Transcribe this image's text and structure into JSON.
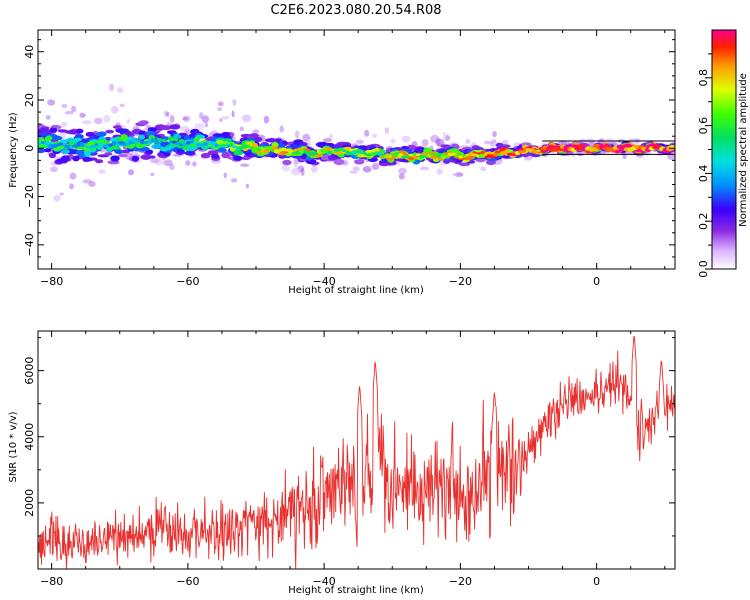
{
  "title": "C2E6.2023.080.20.54.R08",
  "chart_data": [
    {
      "type": "heatmap",
      "xlabel": "Height of straight line (km)",
      "ylabel": "Frequency (Hz)",
      "xlim": [
        -82,
        11.5
      ],
      "ylim": [
        -50,
        49
      ],
      "xticks": [
        -80,
        -60,
        -40,
        -20,
        0
      ],
      "yticks": [
        -40,
        -20,
        0,
        20,
        40
      ],
      "colorbar": {
        "label": "Normalized spectral amplitude",
        "ticks": [
          0.0,
          0.2,
          0.4,
          0.6,
          0.8
        ],
        "range": [
          0,
          1
        ]
      },
      "ridge": {
        "x": [
          -82,
          -78,
          -74,
          -70,
          -66,
          -62,
          -58,
          -54,
          -50,
          -46,
          -42,
          -38,
          -34,
          -30,
          -26,
          -22,
          -18,
          -14,
          -10,
          -6,
          -2,
          2,
          6,
          11.5
        ],
        "freq_center_hz": [
          2,
          1,
          1,
          2,
          3,
          2,
          2,
          1,
          0,
          -1,
          -2,
          -1,
          -2,
          -3,
          -3,
          -3,
          -3,
          -2,
          -1,
          0,
          0,
          0,
          0,
          0
        ],
        "band_halfwidth_hz": [
          8,
          8,
          8,
          9,
          8,
          7,
          6,
          6,
          5,
          5,
          4,
          4,
          4,
          4,
          4,
          4,
          3,
          3,
          2,
          1.5,
          1.5,
          1.5,
          1.5,
          1.5
        ],
        "peak_amplitude": [
          0.45,
          0.4,
          0.45,
          0.4,
          0.4,
          0.35,
          0.45,
          0.5,
          0.7,
          0.75,
          0.7,
          0.65,
          0.6,
          0.7,
          0.75,
          0.7,
          0.8,
          0.85,
          0.9,
          0.95,
          1.0,
          1.0,
          1.0,
          1.0
        ]
      }
    },
    {
      "type": "line",
      "xlabel": "Height of straight line (km)",
      "ylabel": "SNR (10 * v/v)",
      "xlim": [
        -82,
        11.5
      ],
      "ylim": [
        0,
        7200
      ],
      "xticks": [
        -80,
        -60,
        -40,
        -20,
        0
      ],
      "yticks": [
        2000,
        4000,
        6000
      ],
      "color": "#e8302e",
      "x": [
        -82,
        -80,
        -78,
        -76,
        -74,
        -72,
        -70,
        -68,
        -66,
        -64,
        -62,
        -60,
        -58,
        -56,
        -54,
        -52,
        -50,
        -48,
        -46,
        -44,
        -42,
        -40,
        -38,
        -36,
        -34,
        -32,
        -30,
        -28,
        -26,
        -24,
        -22,
        -20,
        -18,
        -16,
        -14,
        -12,
        -10,
        -8,
        -6,
        -4,
        -2,
        0,
        2,
        4,
        6,
        8,
        10,
        11.5
      ],
      "y": [
        600,
        1000,
        700,
        800,
        800,
        900,
        1000,
        900,
        1100,
        1200,
        1100,
        1000,
        1200,
        1100,
        1200,
        1300,
        1300,
        1500,
        1700,
        1800,
        2000,
        2200,
        2400,
        2600,
        3000,
        3300,
        2800,
        2600,
        2300,
        2700,
        2800,
        2500,
        2400,
        3000,
        2900,
        2600,
        3600,
        4200,
        4700,
        5200,
        5000,
        5300,
        5500,
        5800,
        4200,
        4600,
        5100,
        4700
      ],
      "noise_amplitude": [
        500,
        600,
        500,
        500,
        500,
        550,
        600,
        550,
        650,
        700,
        700,
        650,
        700,
        700,
        700,
        750,
        800,
        850,
        900,
        1000,
        1100,
        1200,
        1300,
        1400,
        1500,
        1600,
        1400,
        1300,
        1200,
        1300,
        1400,
        1300,
        1300,
        1400,
        1400,
        1300,
        700,
        600,
        600,
        600,
        600,
        600,
        600,
        600,
        800,
        700,
        700,
        600
      ],
      "peaks": [
        {
          "x": -32.5,
          "y": 6350
        },
        {
          "x": -34.8,
          "y": 5600
        },
        {
          "x": -15,
          "y": 5400
        },
        {
          "x": 5.5,
          "y": 7150
        },
        {
          "x": 9.5,
          "y": 6400
        }
      ]
    }
  ]
}
